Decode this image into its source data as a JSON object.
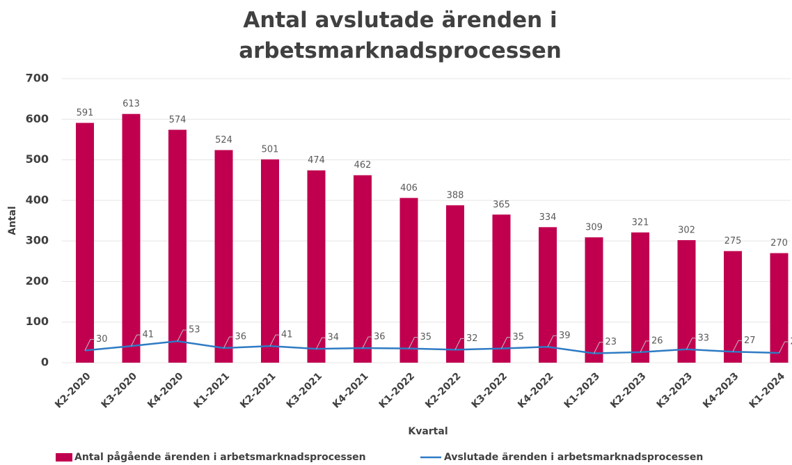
{
  "chart_data": {
    "type": "bar",
    "title": "Antal avslutade ärenden i arbetsmarknadsprocessen",
    "x_label": "Kvartal",
    "y_label": "Antal",
    "categories": [
      "K2-2020",
      "K3-2020",
      "K4-2020",
      "K1-2021",
      "K2-2021",
      "K3-2021",
      "K4-2021",
      "K1-2022",
      "K2-2022",
      "K3-2022",
      "K4-2022",
      "K1-2023",
      "K2-2023",
      "K3-2023",
      "K4-2023",
      "K1-2024"
    ],
    "series": [
      {
        "name": "Antal pågående ärenden i arbetsmarknadsprocessen",
        "type": "bar",
        "color": "#c0004f",
        "values": [
          591,
          613,
          574,
          524,
          501,
          474,
          462,
          406,
          388,
          365,
          334,
          309,
          321,
          302,
          275,
          270
        ]
      },
      {
        "name": "Avslutade ärenden i arbetsmarknadsprocessen",
        "type": "line",
        "color": "#2e7bc4",
        "values": [
          30,
          41,
          53,
          36,
          41,
          34,
          36,
          35,
          32,
          35,
          39,
          23,
          26,
          33,
          27,
          24
        ]
      }
    ],
    "ylim": [
      0,
      700
    ],
    "yticks": [
      0,
      100,
      200,
      300,
      400,
      500,
      600,
      700
    ],
    "grid": true,
    "legend": "bottom"
  }
}
